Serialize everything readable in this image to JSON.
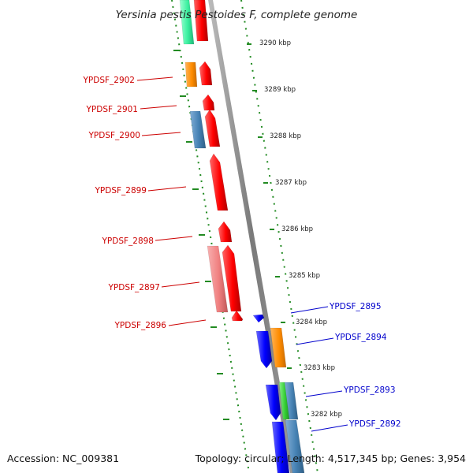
{
  "title": "Yersinia pestis Pestoides F, complete genome",
  "footer": {
    "accession": "Accession: NC_009381",
    "summary": "Topology: circular; Length: 4,517,345 bp; Genes: 3,954"
  },
  "scale_labels": [
    "3290 kbp",
    "3289 kbp",
    "3288 kbp",
    "3287 kbp",
    "3286 kbp",
    "3285 kbp",
    "3284 kbp",
    "3283 kbp",
    "3282 kbp"
  ],
  "genes_left": [
    "YPDSF_2902",
    "YPDSF_2901",
    "YPDSF_2900",
    "YPDSF_2899",
    "YPDSF_2898",
    "YPDSF_2897",
    "YPDSF_2896"
  ],
  "genes_right": [
    "YPDSF_2895",
    "YPDSF_2894",
    "YPDSF_2893",
    "YPDSF_2892"
  ],
  "colors": {
    "forward_gene": "#ff0000",
    "forward_label": "#cc0000",
    "reverse_gene": "#0000ff",
    "reverse_label": "#0000cc",
    "orange_feature": "#ff8c00",
    "steelblue_feature": "#4682b4",
    "pink_feature": "#f08080",
    "green_feature": "#32cd32",
    "aqua_feature": "#3cf0a0",
    "backbone": "#888888",
    "dash_track": "#228b22"
  }
}
